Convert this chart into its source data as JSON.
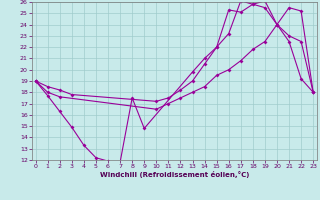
{
  "bg_color": "#c8eaea",
  "grid_color": "#a0cccc",
  "line_color": "#990099",
  "xmin": 0,
  "xmax": 23,
  "ymin": 12,
  "ymax": 26,
  "xlabel": "Windchill (Refroidissement éolien,°C)",
  "line1_x": [
    0,
    1,
    2,
    3,
    4,
    5,
    6,
    7,
    8,
    9,
    13,
    14,
    15,
    16,
    17,
    18,
    19,
    20,
    21,
    22,
    23
  ],
  "line1_y": [
    19,
    17.7,
    16.3,
    14.9,
    13.3,
    12.2,
    11.9,
    11.8,
    17.5,
    14.8,
    19.8,
    21.0,
    22.0,
    23.2,
    26.1,
    25.8,
    26.1,
    24.0,
    22.5,
    19.2,
    18.0
  ],
  "line2_x": [
    0,
    1,
    2,
    10,
    11,
    12,
    13,
    14,
    15,
    16,
    17,
    18,
    19,
    20,
    21,
    22,
    23
  ],
  "line2_y": [
    19,
    18.0,
    17.6,
    16.5,
    17.0,
    17.5,
    18.0,
    18.5,
    19.5,
    20.0,
    20.8,
    21.8,
    22.5,
    24.0,
    25.5,
    25.2,
    18.0
  ],
  "line3_x": [
    0,
    1,
    2,
    3,
    10,
    11,
    12,
    13,
    14,
    15,
    16,
    17,
    18,
    19,
    20,
    21,
    22,
    23
  ],
  "line3_y": [
    19,
    18.5,
    18.2,
    17.8,
    17.2,
    17.5,
    18.2,
    19.0,
    20.5,
    22.0,
    25.3,
    25.1,
    25.8,
    25.5,
    24.0,
    23.0,
    22.5,
    18.0
  ]
}
